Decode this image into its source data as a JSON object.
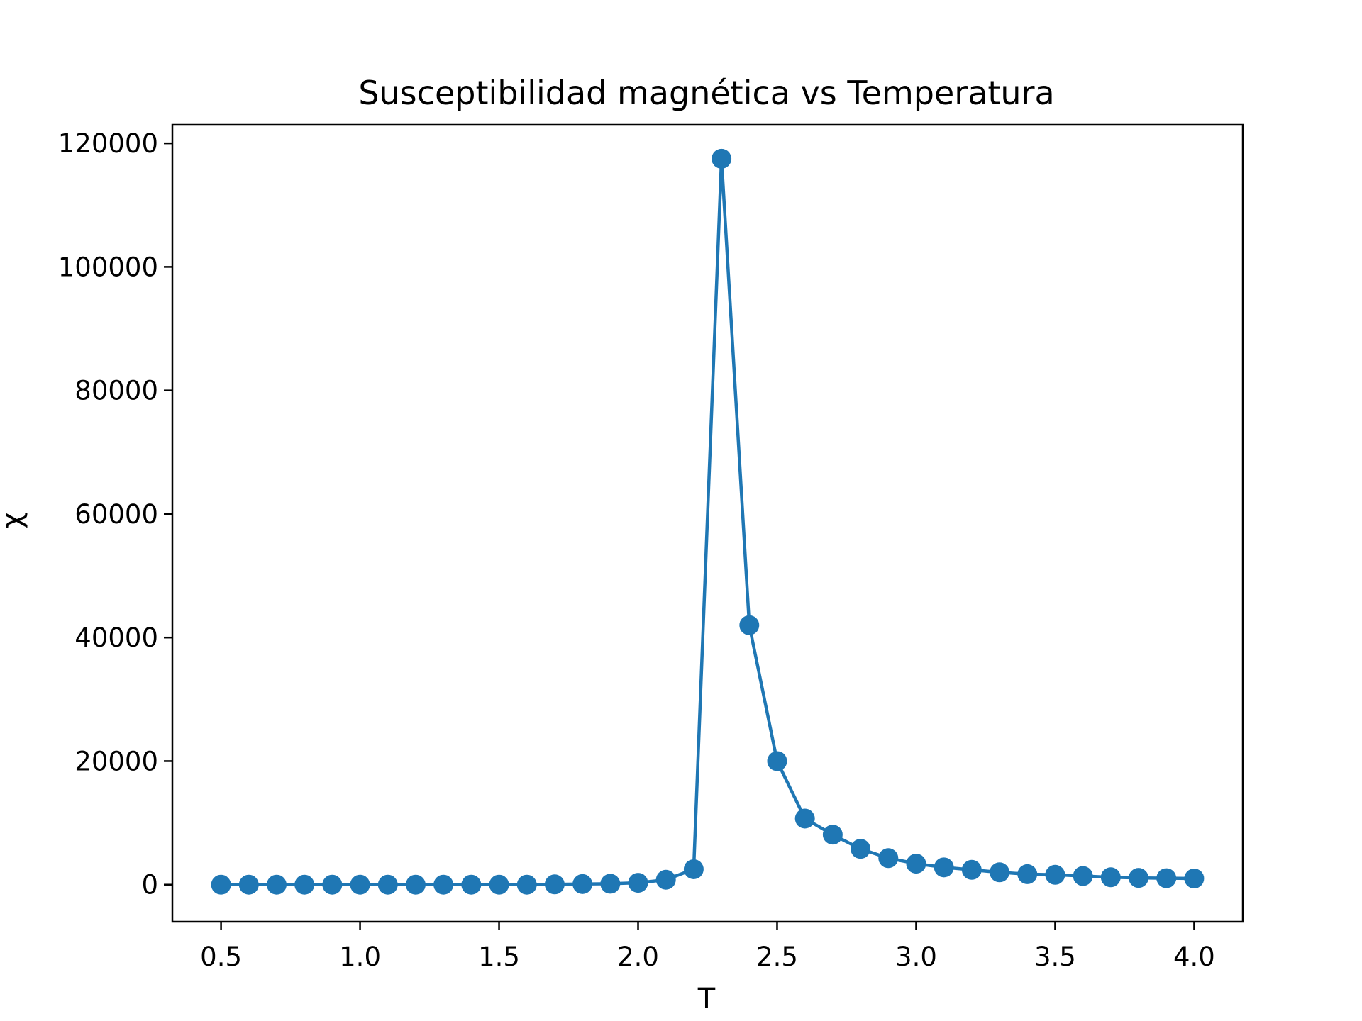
{
  "chart_data": {
    "type": "line",
    "title": "Susceptibilidad magnética vs Temperatura",
    "xlabel": "T",
    "ylabel": "χ",
    "xlim": [
      0.325,
      4.175
    ],
    "ylim": [
      -6000,
      123000
    ],
    "xticks": [
      0.5,
      1.0,
      1.5,
      2.0,
      2.5,
      3.0,
      3.5,
      4.0
    ],
    "xtick_labels": [
      "0.5",
      "1.0",
      "1.5",
      "2.0",
      "2.5",
      "3.0",
      "3.5",
      "4.0"
    ],
    "yticks": [
      0,
      20000,
      40000,
      60000,
      80000,
      100000,
      120000
    ],
    "ytick_labels": [
      "0",
      "20000",
      "40000",
      "60000",
      "80000",
      "100000",
      "120000"
    ],
    "grid": false,
    "series": [
      {
        "color": "#1f77b4",
        "marker": "circle",
        "x": [
          0.5,
          0.6,
          0.7,
          0.8,
          0.9,
          1.0,
          1.1,
          1.2,
          1.3,
          1.4,
          1.5,
          1.6,
          1.7,
          1.8,
          1.9,
          2.0,
          2.1,
          2.2,
          2.3,
          2.4,
          2.5,
          2.6,
          2.7,
          2.8,
          2.9,
          3.0,
          3.1,
          3.2,
          3.3,
          3.4,
          3.5,
          3.6,
          3.7,
          3.8,
          3.9,
          4.0
        ],
        "y": [
          0,
          0,
          0,
          0,
          0,
          0,
          0,
          0,
          0,
          0,
          0,
          0,
          50,
          100,
          150,
          300,
          800,
          2500,
          117500,
          42000,
          20000,
          10700,
          8100,
          5800,
          4300,
          3400,
          2800,
          2400,
          2000,
          1700,
          1600,
          1400,
          1200,
          1100,
          1050,
          1000
        ]
      }
    ]
  }
}
